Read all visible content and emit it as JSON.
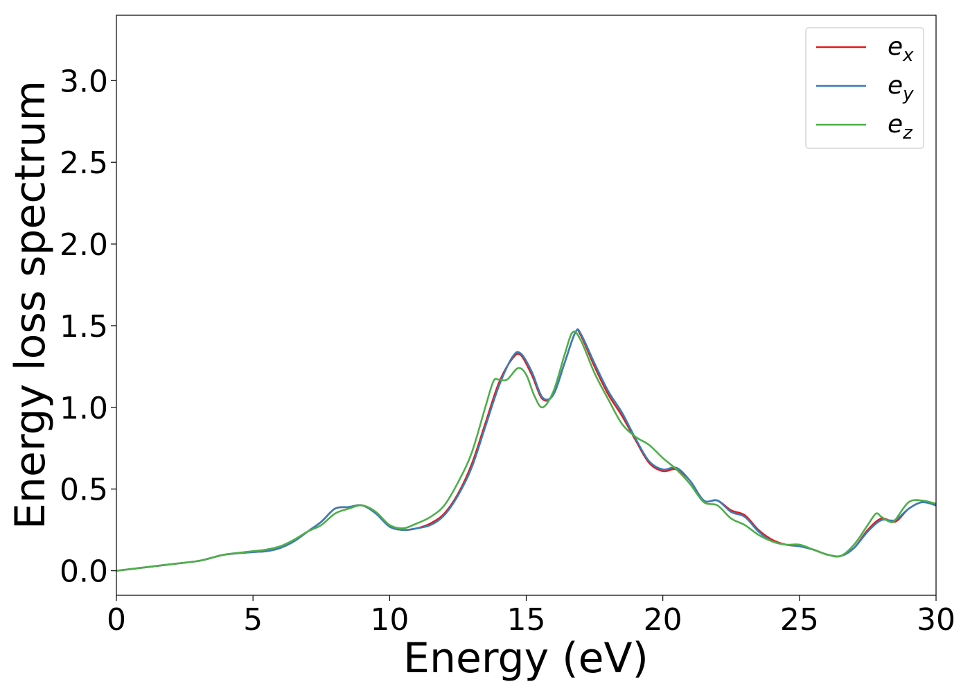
{
  "chart_data": {
    "type": "line",
    "xlabel": "Energy (eV)",
    "ylabel": "Energy loss spectrum",
    "xlim": [
      0,
      30
    ],
    "ylim": [
      -0.15,
      3.4
    ],
    "x_ticks": [
      0,
      5,
      10,
      15,
      20,
      25,
      30
    ],
    "x_tick_labels": [
      "0",
      "5",
      "10",
      "15",
      "20",
      "25",
      "30"
    ],
    "y_ticks": [
      0.0,
      0.5,
      1.0,
      1.5,
      2.0,
      2.5,
      3.0
    ],
    "y_tick_labels": [
      "0.0",
      "0.5",
      "1.0",
      "1.5",
      "2.0",
      "2.5",
      "3.0"
    ],
    "grid": false,
    "legend_position": "top-right",
    "series": [
      {
        "name": "e_x",
        "label_base": "e",
        "label_sub": "x",
        "color": "#e41a1c",
        "points": [
          [
            0,
            0.0
          ],
          [
            1,
            0.02
          ],
          [
            2,
            0.04
          ],
          [
            3,
            0.06
          ],
          [
            3.5,
            0.08
          ],
          [
            4,
            0.1
          ],
          [
            5,
            0.115
          ],
          [
            5.5,
            0.12
          ],
          [
            6,
            0.14
          ],
          [
            6.5,
            0.18
          ],
          [
            7,
            0.24
          ],
          [
            7.5,
            0.3
          ],
          [
            8,
            0.38
          ],
          [
            8.5,
            0.39
          ],
          [
            9,
            0.4
          ],
          [
            9.5,
            0.35
          ],
          [
            10,
            0.27
          ],
          [
            10.5,
            0.25
          ],
          [
            11,
            0.26
          ],
          [
            11.5,
            0.29
          ],
          [
            12,
            0.35
          ],
          [
            12.5,
            0.47
          ],
          [
            13,
            0.65
          ],
          [
            13.5,
            0.9
          ],
          [
            14,
            1.15
          ],
          [
            14.5,
            1.3
          ],
          [
            14.8,
            1.32
          ],
          [
            15.2,
            1.2
          ],
          [
            15.6,
            1.05
          ],
          [
            16,
            1.08
          ],
          [
            16.4,
            1.27
          ],
          [
            16.8,
            1.46
          ],
          [
            17,
            1.44
          ],
          [
            17.5,
            1.25
          ],
          [
            18,
            1.08
          ],
          [
            18.5,
            0.95
          ],
          [
            19,
            0.8
          ],
          [
            19.5,
            0.66
          ],
          [
            20,
            0.61
          ],
          [
            20.5,
            0.62
          ],
          [
            21,
            0.55
          ],
          [
            21.5,
            0.43
          ],
          [
            22,
            0.43
          ],
          [
            22.5,
            0.37
          ],
          [
            23,
            0.34
          ],
          [
            23.5,
            0.25
          ],
          [
            24,
            0.19
          ],
          [
            24.5,
            0.16
          ],
          [
            25,
            0.15
          ],
          [
            25.5,
            0.13
          ],
          [
            26,
            0.1
          ],
          [
            26.5,
            0.09
          ],
          [
            27,
            0.14
          ],
          [
            27.5,
            0.25
          ],
          [
            28,
            0.32
          ],
          [
            28.5,
            0.3
          ],
          [
            29,
            0.38
          ],
          [
            29.5,
            0.42
          ],
          [
            30,
            0.4
          ]
        ]
      },
      {
        "name": "e_y",
        "label_base": "e",
        "label_sub": "y",
        "color": "#377eb8",
        "points": [
          [
            0,
            0.0
          ],
          [
            1,
            0.02
          ],
          [
            2,
            0.04
          ],
          [
            3,
            0.06
          ],
          [
            3.5,
            0.08
          ],
          [
            4,
            0.1
          ],
          [
            5,
            0.115
          ],
          [
            5.5,
            0.12
          ],
          [
            6,
            0.14
          ],
          [
            6.5,
            0.18
          ],
          [
            7,
            0.24
          ],
          [
            7.5,
            0.3
          ],
          [
            8,
            0.38
          ],
          [
            8.5,
            0.39
          ],
          [
            9,
            0.4
          ],
          [
            9.5,
            0.35
          ],
          [
            10,
            0.27
          ],
          [
            10.5,
            0.25
          ],
          [
            11,
            0.26
          ],
          [
            11.5,
            0.28
          ],
          [
            12,
            0.34
          ],
          [
            12.5,
            0.46
          ],
          [
            13,
            0.63
          ],
          [
            13.5,
            0.88
          ],
          [
            14,
            1.13
          ],
          [
            14.5,
            1.31
          ],
          [
            14.8,
            1.33
          ],
          [
            15.2,
            1.22
          ],
          [
            15.6,
            1.06
          ],
          [
            16,
            1.08
          ],
          [
            16.4,
            1.27
          ],
          [
            16.8,
            1.46
          ],
          [
            17,
            1.45
          ],
          [
            17.5,
            1.27
          ],
          [
            18,
            1.1
          ],
          [
            18.5,
            0.97
          ],
          [
            19,
            0.81
          ],
          [
            19.5,
            0.67
          ],
          [
            20,
            0.62
          ],
          [
            20.5,
            0.63
          ],
          [
            21,
            0.55
          ],
          [
            21.5,
            0.43
          ],
          [
            22,
            0.43
          ],
          [
            22.5,
            0.36
          ],
          [
            23,
            0.33
          ],
          [
            23.5,
            0.24
          ],
          [
            24,
            0.18
          ],
          [
            24.5,
            0.16
          ],
          [
            25,
            0.15
          ],
          [
            25.5,
            0.13
          ],
          [
            26,
            0.1
          ],
          [
            26.5,
            0.09
          ],
          [
            27,
            0.14
          ],
          [
            27.5,
            0.24
          ],
          [
            28,
            0.31
          ],
          [
            28.5,
            0.31
          ],
          [
            29,
            0.38
          ],
          [
            29.5,
            0.42
          ],
          [
            30,
            0.4
          ]
        ]
      },
      {
        "name": "e_z",
        "label_base": "e",
        "label_sub": "z",
        "color": "#4daf4a",
        "points": [
          [
            0,
            0.0
          ],
          [
            1,
            0.02
          ],
          [
            2,
            0.04
          ],
          [
            3,
            0.06
          ],
          [
            3.5,
            0.08
          ],
          [
            4,
            0.1
          ],
          [
            5,
            0.12
          ],
          [
            5.5,
            0.13
          ],
          [
            6,
            0.15
          ],
          [
            6.5,
            0.19
          ],
          [
            7,
            0.24
          ],
          [
            7.5,
            0.28
          ],
          [
            8,
            0.35
          ],
          [
            8.5,
            0.38
          ],
          [
            9,
            0.4
          ],
          [
            9.5,
            0.36
          ],
          [
            10,
            0.28
          ],
          [
            10.5,
            0.26
          ],
          [
            11,
            0.29
          ],
          [
            11.5,
            0.33
          ],
          [
            12,
            0.4
          ],
          [
            12.5,
            0.54
          ],
          [
            13,
            0.72
          ],
          [
            13.5,
            1.0
          ],
          [
            13.8,
            1.16
          ],
          [
            14,
            1.17
          ],
          [
            14.3,
            1.17
          ],
          [
            14.7,
            1.24
          ],
          [
            15,
            1.2
          ],
          [
            15.3,
            1.07
          ],
          [
            15.6,
            1.0
          ],
          [
            16,
            1.1
          ],
          [
            16.4,
            1.32
          ],
          [
            16.7,
            1.46
          ],
          [
            17,
            1.41
          ],
          [
            17.5,
            1.21
          ],
          [
            18,
            1.05
          ],
          [
            18.5,
            0.9
          ],
          [
            19,
            0.82
          ],
          [
            19.5,
            0.77
          ],
          [
            20,
            0.69
          ],
          [
            20.5,
            0.62
          ],
          [
            21,
            0.53
          ],
          [
            21.5,
            0.42
          ],
          [
            22,
            0.4
          ],
          [
            22.5,
            0.32
          ],
          [
            23,
            0.28
          ],
          [
            23.5,
            0.22
          ],
          [
            24,
            0.18
          ],
          [
            24.5,
            0.16
          ],
          [
            25,
            0.16
          ],
          [
            25.5,
            0.13
          ],
          [
            26,
            0.1
          ],
          [
            26.5,
            0.09
          ],
          [
            27,
            0.16
          ],
          [
            27.5,
            0.28
          ],
          [
            27.8,
            0.35
          ],
          [
            28,
            0.33
          ],
          [
            28.3,
            0.3
          ],
          [
            28.5,
            0.31
          ],
          [
            29,
            0.42
          ],
          [
            29.5,
            0.43
          ],
          [
            30,
            0.41
          ]
        ]
      }
    ]
  }
}
